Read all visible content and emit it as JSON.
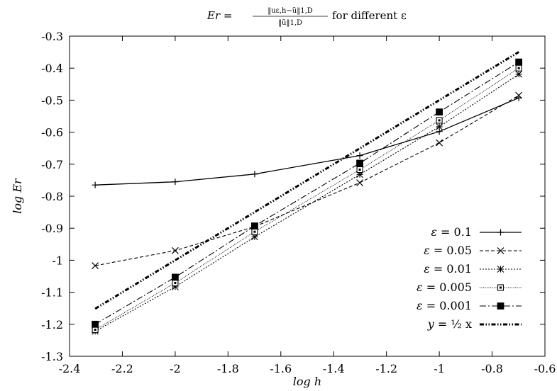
{
  "chart_data": {
    "type": "line",
    "title": "Er = ‖u_{ε,h} − ũ‖_{1,D} / ‖ũ‖_{1,D} for different ε",
    "title_text": {
      "lhs": "Er =",
      "numerator": "‖uε,h−ũ‖1,D",
      "denominator": "‖ũ‖1,D",
      "suffix": "for different ε"
    },
    "xlabel": "log h",
    "ylabel": "log Er",
    "xlim": [
      -2.4,
      -0.6
    ],
    "ylim": [
      -1.3,
      -0.3
    ],
    "x_ticks": [
      "-2.4",
      "-2.2",
      "-2",
      "-1.8",
      "-1.6",
      "-1.4",
      "-1.2",
      "-1",
      "-0.8",
      "-0.6"
    ],
    "y_ticks": [
      "-0.3",
      "-0.4",
      "-0.5",
      "-0.6",
      "-0.7",
      "-0.8",
      "-0.9",
      "-1",
      "-1.1",
      "-1.2",
      "-1.3"
    ],
    "grid": false,
    "legend_position": "bottom-right",
    "x": [
      -2.303,
      -2.0,
      -1.699,
      -1.301,
      -1.0,
      -0.699
    ],
    "series": [
      {
        "name": "ε = 0.1",
        "marker": "plus",
        "dash": "solid",
        "width": 1.3,
        "values": [
          -0.765,
          -0.755,
          -0.731,
          -0.673,
          -0.598,
          -0.493
        ]
      },
      {
        "name": "ε = 0.05",
        "marker": "cross",
        "dash": "dashed",
        "width": 1.1,
        "values": [
          -1.017,
          -0.97,
          -0.895,
          -0.758,
          -0.633,
          -0.485
        ]
      },
      {
        "name": "ε = 0.01",
        "marker": "star",
        "dash": "dotted",
        "width": 1.1,
        "values": [
          -1.222,
          -1.083,
          -0.927,
          -0.732,
          -0.583,
          -0.419
        ]
      },
      {
        "name": "ε = 0.005",
        "marker": "open-square",
        "dash": "fine-dotted",
        "width": 1.0,
        "values": [
          -1.217,
          -1.071,
          -0.911,
          -0.717,
          -0.563,
          -0.4
        ]
      },
      {
        "name": "ε = 0.001",
        "marker": "filled-square",
        "dash": "dash-dot",
        "width": 1.1,
        "values": [
          -1.2,
          -1.053,
          -0.893,
          -0.697,
          -0.537,
          -0.381
        ]
      },
      {
        "name": "y = ½ x",
        "marker": "none",
        "dash": "dash-dot-dot",
        "width": 3.0,
        "values": [
          -1.1515,
          -1.0,
          -0.8495,
          -0.6505,
          -0.5,
          -0.3495
        ]
      }
    ],
    "legend_labels": [
      {
        "eps_symbol": "ε",
        "text": "= 0.1"
      },
      {
        "eps_symbol": "ε",
        "text": "= 0.05"
      },
      {
        "eps_symbol": "ε",
        "text": "= 0.01"
      },
      {
        "eps_symbol": "ε",
        "text": "= 0.005"
      },
      {
        "eps_symbol": "ε",
        "text": "= 0.001"
      },
      {
        "eps_symbol": "y",
        "text": "= ½ x"
      }
    ]
  }
}
